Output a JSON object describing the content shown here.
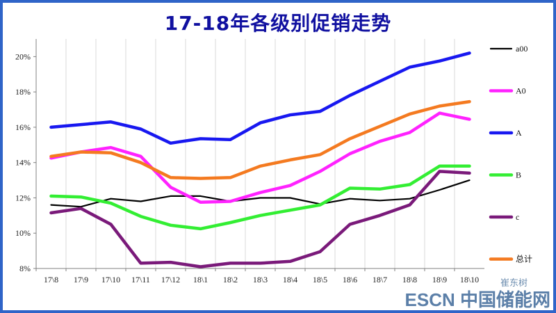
{
  "chart_data": {
    "type": "line",
    "title": "17-18年各级别促销走势",
    "categories": [
      "17\\8",
      "17\\9",
      "17\\10",
      "17\\11",
      "17\\12",
      "18\\1",
      "18\\2",
      "18\\3",
      "18\\4",
      "18\\5",
      "18\\6",
      "18\\7",
      "18\\8",
      "18\\9",
      "18\\10"
    ],
    "ylim": [
      8,
      21
    ],
    "yticks": [
      8,
      10,
      12,
      14,
      16,
      18,
      20
    ],
    "ytick_suffix": "%",
    "grid": "vertical",
    "legend": "right",
    "series": [
      {
        "name": "a00",
        "color": "#000000",
        "values": [
          11.6,
          11.5,
          11.95,
          11.8,
          12.1,
          12.1,
          11.8,
          12.0,
          12.0,
          11.65,
          11.95,
          11.85,
          11.95,
          12.45,
          13.0
        ]
      },
      {
        "name": "A0",
        "color": "#ff22ff",
        "values": [
          14.25,
          14.6,
          14.85,
          14.35,
          12.6,
          11.75,
          11.8,
          12.3,
          12.7,
          13.5,
          14.5,
          15.2,
          15.7,
          16.8,
          16.45
        ]
      },
      {
        "name": "A",
        "color": "#1818f0",
        "values": [
          16.0,
          16.15,
          16.3,
          15.9,
          15.1,
          15.35,
          15.3,
          16.25,
          16.7,
          16.9,
          17.8,
          18.6,
          19.4,
          19.75,
          20.2
        ]
      },
      {
        "name": "B",
        "color": "#33ee33",
        "values": [
          12.1,
          12.05,
          11.7,
          10.95,
          10.45,
          10.25,
          10.6,
          11.0,
          11.3,
          11.6,
          12.55,
          12.5,
          12.75,
          13.8,
          13.8
        ]
      },
      {
        "name": "c",
        "color": "#7a1a7a",
        "values": [
          11.15,
          11.4,
          10.5,
          8.3,
          8.35,
          8.1,
          8.3,
          8.3,
          8.4,
          8.95,
          10.5,
          11.0,
          11.6,
          13.5,
          13.4
        ]
      },
      {
        "name": "总计",
        "color": "#f47a20",
        "values": [
          14.35,
          14.6,
          14.55,
          14.0,
          13.15,
          13.1,
          13.15,
          13.8,
          14.15,
          14.45,
          15.35,
          16.05,
          16.75,
          17.2,
          17.45
        ]
      }
    ]
  },
  "watermark": {
    "main": "ESCN 中国储能网",
    "sub": "崔东树"
  }
}
